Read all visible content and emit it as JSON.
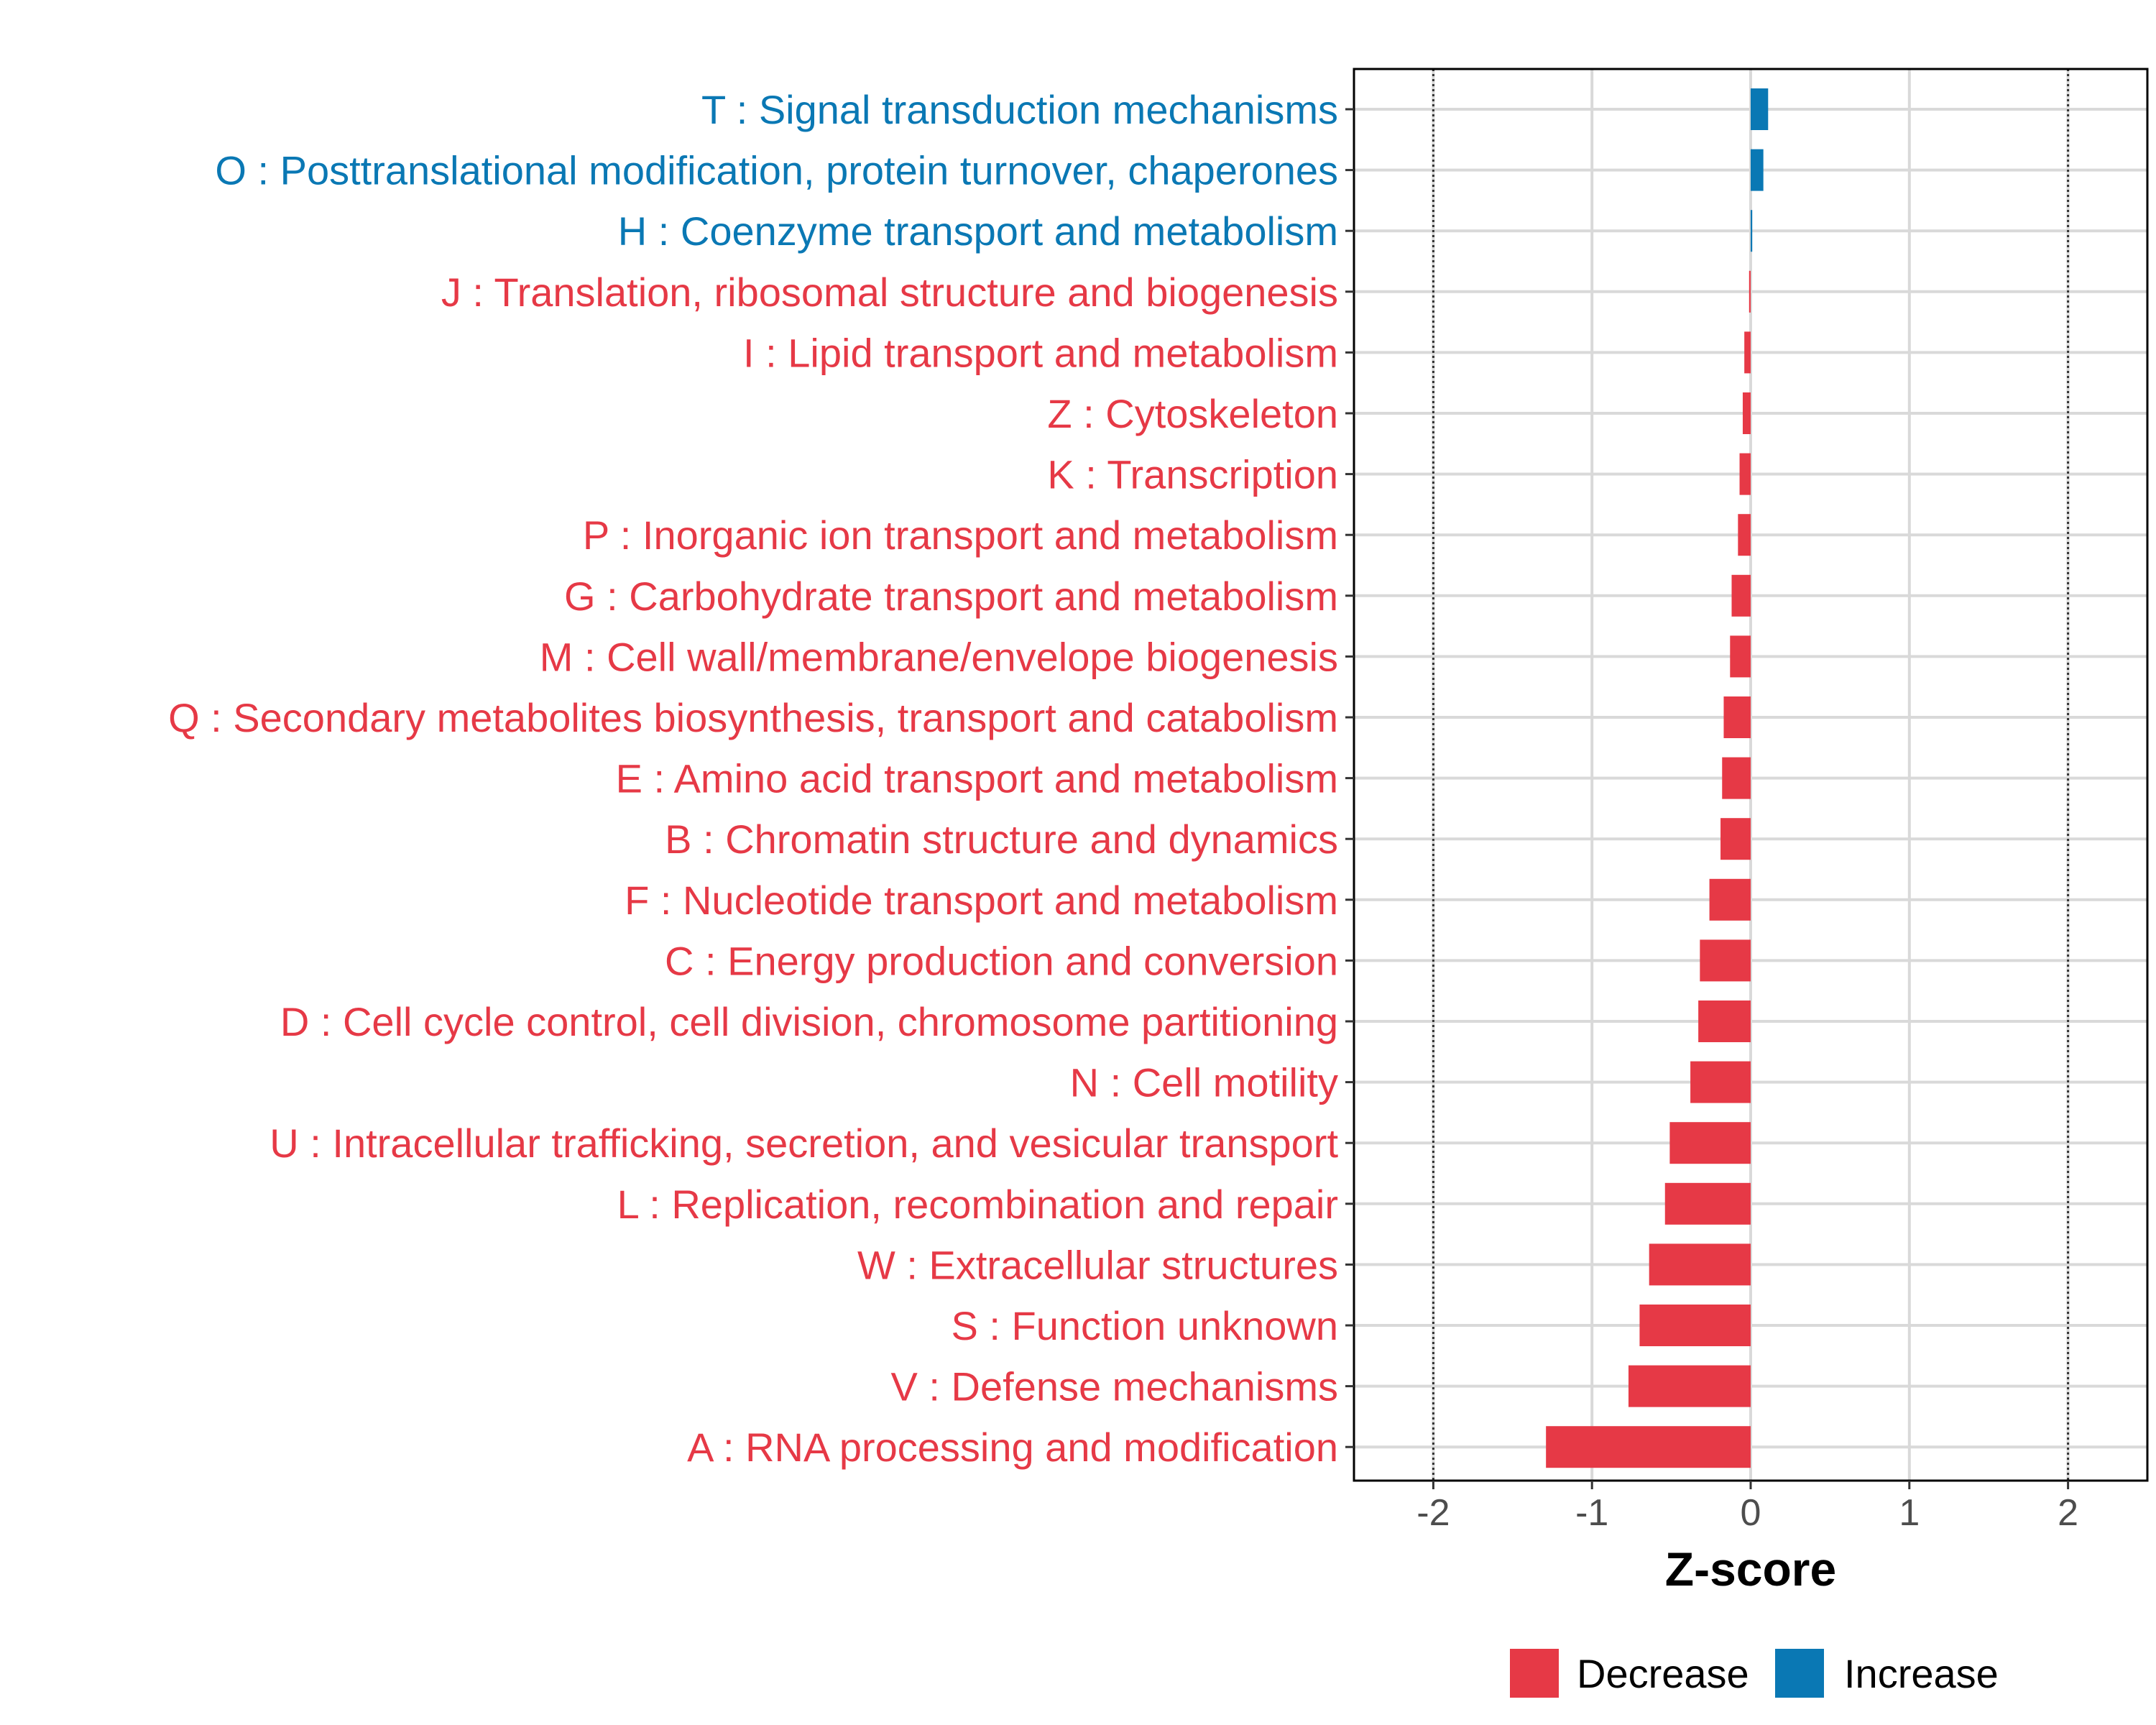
{
  "chart_data": {
    "type": "bar",
    "orientation": "horizontal",
    "xlabel": "Z-score",
    "xlim": [
      -2.5,
      2.5
    ],
    "xticks": [
      -2,
      -1,
      0,
      1,
      2
    ],
    "xtick_labels": [
      "-2",
      "-1",
      "0",
      "1",
      "2"
    ],
    "reference_lines": [
      -2,
      2
    ],
    "grid": true,
    "categories": [
      "T : Signal transduction mechanisms",
      "O : Posttranslational modification, protein turnover, chaperones",
      "H : Coenzyme transport and metabolism",
      "J : Translation, ribosomal structure and biogenesis",
      "I : Lipid transport and metabolism",
      "Z : Cytoskeleton",
      "K : Transcription",
      "P : Inorganic ion transport and metabolism",
      "G : Carbohydrate transport and metabolism",
      "M : Cell wall/membrane/envelope biogenesis",
      "Q : Secondary metabolites biosynthesis, transport and catabolism",
      "E : Amino acid transport and metabolism",
      "B : Chromatin structure and dynamics",
      "F : Nucleotide transport and metabolism",
      "C : Energy production and conversion",
      "D : Cell cycle control, cell division, chromosome partitioning",
      "N : Cell motility",
      "U : Intracellular trafficking, secretion, and vesicular transport",
      "L : Replication, recombination and repair",
      "W : Extracellular structures",
      "S : Function unknown",
      "V : Defense mechanisms",
      "A : RNA processing and modification"
    ],
    "values": [
      0.11,
      0.08,
      0.01,
      -0.01,
      -0.04,
      -0.05,
      -0.07,
      -0.08,
      -0.12,
      -0.13,
      -0.17,
      -0.18,
      -0.19,
      -0.26,
      -0.32,
      -0.33,
      -0.38,
      -0.51,
      -0.54,
      -0.64,
      -0.7,
      -0.77,
      -1.29
    ],
    "groups": [
      "Increase",
      "Increase",
      "Increase",
      "Decrease",
      "Decrease",
      "Decrease",
      "Decrease",
      "Decrease",
      "Decrease",
      "Decrease",
      "Decrease",
      "Decrease",
      "Decrease",
      "Decrease",
      "Decrease",
      "Decrease",
      "Decrease",
      "Decrease",
      "Decrease",
      "Decrease",
      "Decrease",
      "Decrease",
      "Decrease"
    ],
    "legend": [
      {
        "label": "Decrease",
        "color": "#E63946"
      },
      {
        "label": "Increase",
        "color": "#0A78B4"
      }
    ],
    "legend_position": "bottom"
  }
}
